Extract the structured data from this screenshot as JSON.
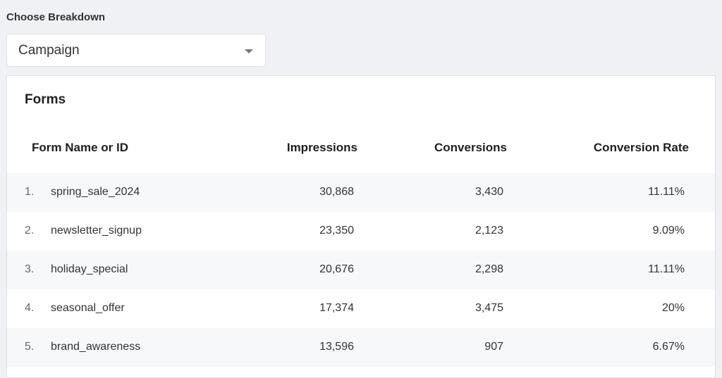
{
  "breakdown": {
    "label": "Choose Breakdown",
    "selected": "Campaign"
  },
  "panel": {
    "title": "Forms"
  },
  "table": {
    "columns": [
      "Form Name or ID",
      "Impressions",
      "Conversions",
      "Conversion Rate"
    ],
    "rows": [
      [
        "1.",
        "spring_sale_2024",
        "30,868",
        "3,430",
        "11.11%"
      ],
      [
        "2.",
        "newsletter_signup",
        "23,350",
        "2,123",
        "9.09%"
      ],
      [
        "3.",
        "holiday_special",
        "20,676",
        "2,298",
        "11.11%"
      ],
      [
        "4.",
        "seasonal_offer",
        "17,374",
        "3,475",
        "20%"
      ],
      [
        "5.",
        "brand_awareness",
        "13,596",
        "907",
        "6.67%"
      ]
    ]
  }
}
